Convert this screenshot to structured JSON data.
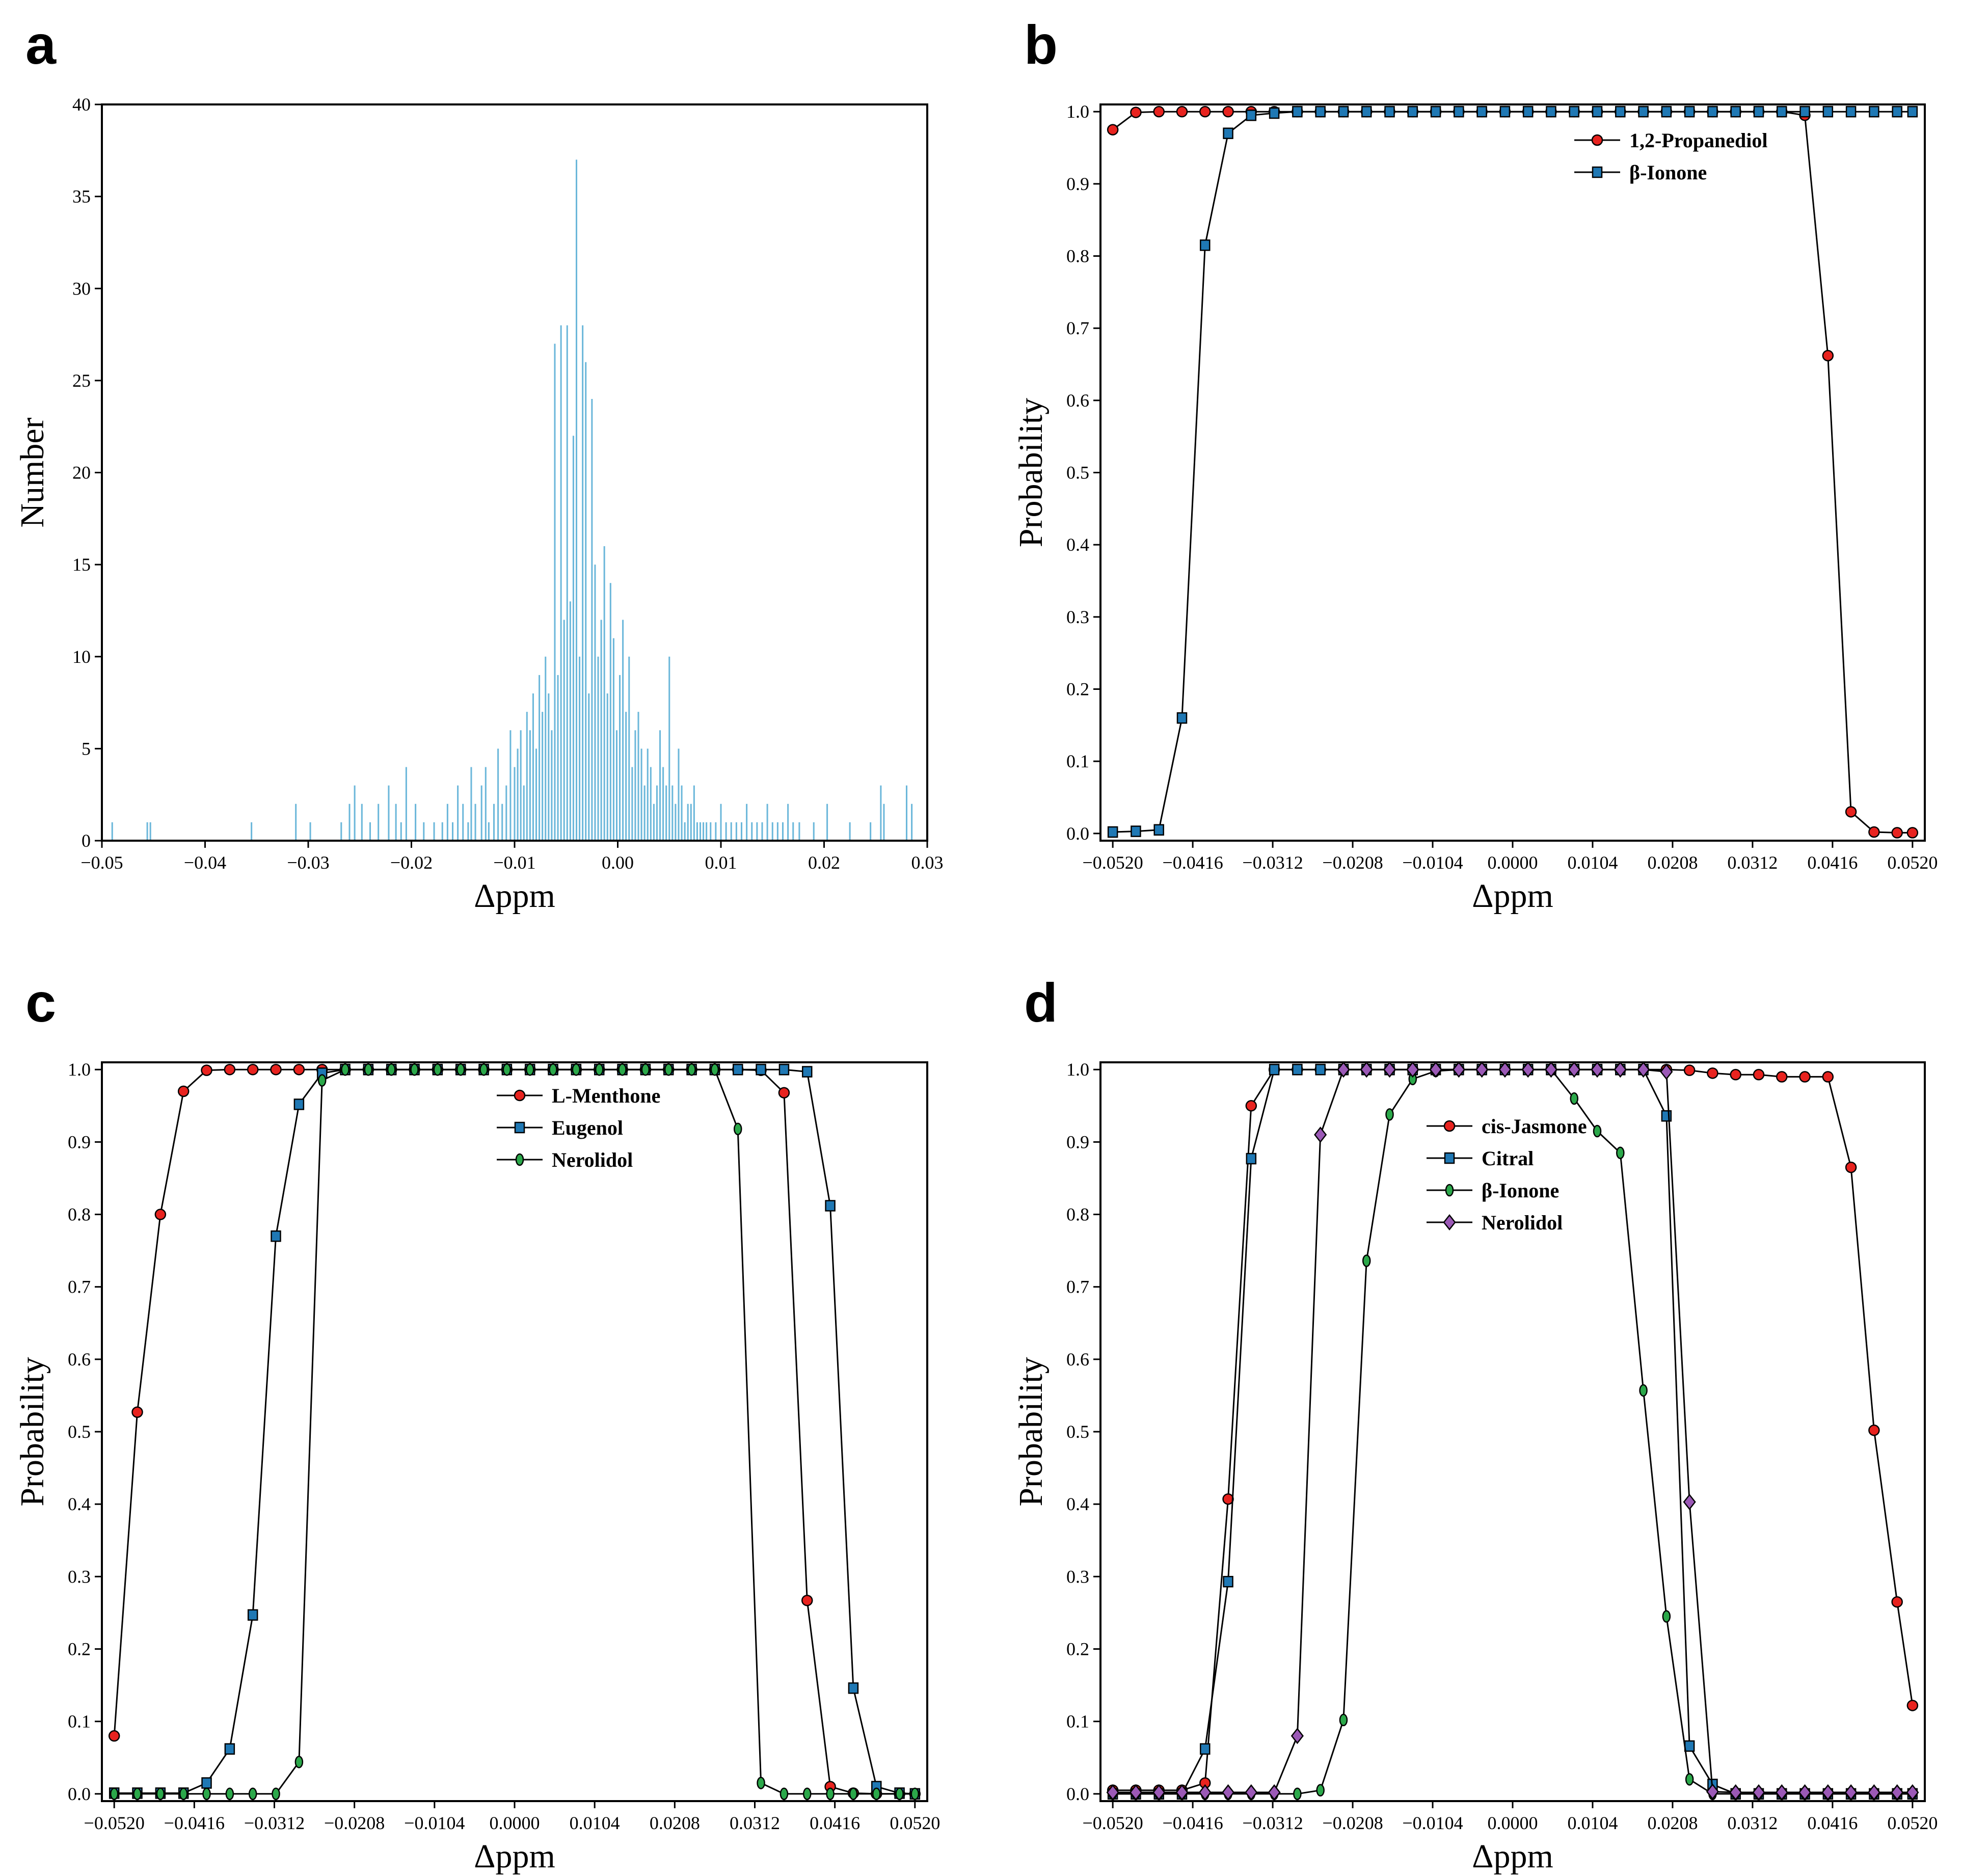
{
  "chart_data": [
    {
      "id": "a",
      "panel_label": "a",
      "type": "bar",
      "subtype": "histogram",
      "xlabel": "Δppm",
      "ylabel": "Number",
      "xlim": [
        -0.05,
        0.03
      ],
      "ylim": [
        0,
        40
      ],
      "xticks": [
        -0.05,
        -0.04,
        -0.03,
        -0.02,
        -0.01,
        0.0,
        0.01,
        0.02,
        0.03
      ],
      "xtick_labels": [
        "−0.05",
        "−0.04",
        "−0.03",
        "−0.02",
        "−0.01",
        "0.00",
        "0.01",
        "0.02",
        "0.03"
      ],
      "yticks": [
        0,
        5,
        10,
        15,
        20,
        25,
        30,
        35,
        40
      ],
      "ytick_labels": [
        "0",
        "5",
        "10",
        "15",
        "20",
        "25",
        "30",
        "35",
        "40"
      ],
      "color": "#6BB7DA",
      "bar_width": 0.00015,
      "x": [
        -0.049,
        -0.0456,
        -0.0453,
        -0.0355,
        -0.0312,
        -0.0298,
        -0.0268,
        -0.026,
        -0.0255,
        -0.0248,
        -0.024,
        -0.0232,
        -0.0222,
        -0.0215,
        -0.021,
        -0.0205,
        -0.0196,
        -0.0188,
        -0.0178,
        -0.017,
        -0.0165,
        -0.016,
        -0.0155,
        -0.015,
        -0.0145,
        -0.0142,
        -0.0138,
        -0.0132,
        -0.0128,
        -0.0125,
        -0.012,
        -0.0116,
        -0.0112,
        -0.0108,
        -0.0104,
        -0.01,
        -0.0097,
        -0.0094,
        -0.0091,
        -0.0088,
        -0.0085,
        -0.0082,
        -0.0079,
        -0.0076,
        -0.0073,
        -0.007,
        -0.0067,
        -0.0064,
        -0.0061,
        -0.0058,
        -0.0055,
        -0.0052,
        -0.0049,
        -0.0046,
        -0.0043,
        -0.004,
        -0.0037,
        -0.0034,
        -0.0031,
        -0.0028,
        -0.0025,
        -0.0022,
        -0.0019,
        -0.0016,
        -0.0013,
        -0.001,
        -0.0007,
        -0.0004,
        -0.0001,
        0.0002,
        0.0005,
        0.0008,
        0.0011,
        0.0014,
        0.0017,
        0.002,
        0.0023,
        0.0026,
        0.0029,
        0.0032,
        0.0035,
        0.0038,
        0.0041,
        0.0044,
        0.0047,
        0.005,
        0.0053,
        0.0056,
        0.0059,
        0.0062,
        0.0065,
        0.0068,
        0.0071,
        0.0074,
        0.0077,
        0.008,
        0.0083,
        0.0086,
        0.009,
        0.0095,
        0.01,
        0.0105,
        0.011,
        0.0115,
        0.012,
        0.0125,
        0.013,
        0.0135,
        0.014,
        0.0145,
        0.015,
        0.0155,
        0.016,
        0.0165,
        0.017,
        0.0176,
        0.019,
        0.0203,
        0.0225,
        0.0245,
        0.0255,
        0.0258,
        0.028,
        0.0285
      ],
      "values": [
        1,
        1,
        1,
        1,
        2,
        1,
        1,
        2,
        3,
        2,
        1,
        2,
        3,
        2,
        1,
        4,
        2,
        1,
        1,
        1,
        2,
        1,
        3,
        2,
        1,
        4,
        2,
        3,
        4,
        1,
        2,
        5,
        2,
        3,
        6,
        4,
        5,
        6,
        3,
        7,
        6,
        8,
        5,
        9,
        7,
        10,
        8,
        6,
        27,
        9,
        28,
        12,
        28,
        13,
        22,
        37,
        10,
        28,
        26,
        8,
        24,
        15,
        10,
        12,
        16,
        8,
        14,
        11,
        6,
        9,
        12,
        7,
        10,
        4,
        6,
        7,
        5,
        3,
        5,
        4,
        2,
        3,
        6,
        4,
        3,
        10,
        3,
        2,
        5,
        3,
        1,
        2,
        2,
        3,
        1,
        1,
        1,
        1,
        1,
        1,
        2,
        1,
        1,
        1,
        1,
        2,
        1,
        1,
        1,
        2,
        1,
        1,
        1,
        2,
        1,
        1,
        1,
        2,
        1,
        1,
        3,
        2,
        3,
        2
      ]
    },
    {
      "id": "b",
      "panel_label": "b",
      "type": "line",
      "xlabel": "Δppm",
      "ylabel": "Probability",
      "xlim": [
        -0.0536,
        0.0536
      ],
      "ylim": [
        -0.01,
        1.01
      ],
      "xticks": [
        -0.052,
        -0.0416,
        -0.0312,
        -0.0208,
        -0.0104,
        0.0,
        0.0104,
        0.0208,
        0.0312,
        0.0416,
        0.052
      ],
      "xtick_labels": [
        "−0.0520",
        "−0.0416",
        "−0.0312",
        "−0.0208",
        "−0.0104",
        "0.0000",
        "0.0104",
        "0.0208",
        "0.0312",
        "0.0416",
        "0.0520"
      ],
      "yticks": [
        0.0,
        0.1,
        0.2,
        0.3,
        0.4,
        0.5,
        0.6,
        0.7,
        0.8,
        0.9,
        1.0
      ],
      "ytick_labels": [
        "0.0",
        "0.1",
        "0.2",
        "0.3",
        "0.4",
        "0.5",
        "0.6",
        "0.7",
        "0.8",
        "0.9",
        "1.0"
      ],
      "legend_position": "top-right",
      "x": [
        -0.052,
        -0.049,
        -0.046,
        -0.043,
        -0.04,
        -0.037,
        -0.034,
        -0.031,
        -0.028,
        -0.025,
        -0.022,
        -0.019,
        -0.016,
        -0.013,
        -0.01,
        -0.007,
        -0.004,
        -0.001,
        0.002,
        0.005,
        0.008,
        0.011,
        0.014,
        0.017,
        0.02,
        0.023,
        0.026,
        0.029,
        0.032,
        0.035,
        0.038,
        0.041,
        0.044,
        0.047,
        0.05,
        0.052
      ],
      "series": [
        {
          "name": "1,2-Propanediol",
          "color": "#E8231F",
          "marker": "circle",
          "values": [
            0.975,
            0.999,
            1,
            1,
            1,
            1,
            1,
            1,
            1,
            1,
            1,
            1,
            1,
            1,
            1,
            1,
            1,
            1,
            1,
            1,
            1,
            1,
            1,
            1,
            1,
            1,
            1,
            1,
            1,
            1,
            0.995,
            0.662,
            0.03,
            0.002,
            0.001,
            0.001
          ]
        },
        {
          "name": "β-Ionone",
          "color": "#1F78B4",
          "marker": "square",
          "values": [
            0.002,
            0.003,
            0.005,
            0.16,
            0.815,
            0.97,
            0.995,
            0.998,
            1,
            1,
            1,
            1,
            1,
            1,
            1,
            1,
            1,
            1,
            1,
            1,
            1,
            1,
            1,
            1,
            1,
            1,
            1,
            1,
            1,
            1,
            1,
            1,
            1,
            1,
            1,
            1
          ]
        }
      ]
    },
    {
      "id": "c",
      "panel_label": "c",
      "type": "line",
      "xlabel": "Δppm",
      "ylabel": "Probability",
      "xlim": [
        -0.0536,
        0.0536
      ],
      "ylim": [
        -0.01,
        1.01
      ],
      "xticks": [
        -0.052,
        -0.0416,
        -0.0312,
        -0.0208,
        -0.0104,
        0.0,
        0.0104,
        0.0208,
        0.0312,
        0.0416,
        0.052
      ],
      "xtick_labels": [
        "−0.0520",
        "−0.0416",
        "−0.0312",
        "−0.0208",
        "−0.0104",
        "0.0000",
        "0.0104",
        "0.0208",
        "0.0312",
        "0.0416",
        "0.0520"
      ],
      "yticks": [
        0.0,
        0.1,
        0.2,
        0.3,
        0.4,
        0.5,
        0.6,
        0.7,
        0.8,
        0.9,
        1.0
      ],
      "ytick_labels": [
        "0.0",
        "0.1",
        "0.2",
        "0.3",
        "0.4",
        "0.5",
        "0.6",
        "0.7",
        "0.8",
        "0.9",
        "1.0"
      ],
      "legend_position": "top-center",
      "x": [
        -0.052,
        -0.049,
        -0.046,
        -0.043,
        -0.04,
        -0.037,
        -0.034,
        -0.031,
        -0.028,
        -0.025,
        -0.022,
        -0.019,
        -0.016,
        -0.013,
        -0.01,
        -0.007,
        -0.004,
        -0.001,
        0.002,
        0.005,
        0.008,
        0.011,
        0.014,
        0.017,
        0.02,
        0.023,
        0.026,
        0.029,
        0.032,
        0.035,
        0.038,
        0.041,
        0.044,
        0.047,
        0.05,
        0.052
      ],
      "series": [
        {
          "name": "L-Menthone",
          "color": "#E8231F",
          "marker": "circle",
          "values": [
            0.08,
            0.527,
            0.8,
            0.97,
            0.999,
            1,
            1,
            1,
            1,
            1,
            1,
            1,
            1,
            1,
            1,
            1,
            1,
            1,
            1,
            1,
            1,
            1,
            1,
            1,
            1,
            1,
            1,
            1,
            0.999,
            0.968,
            0.267,
            0.01,
            0.001,
            0,
            0,
            0
          ]
        },
        {
          "name": "Eugenol",
          "color": "#1F78B4",
          "marker": "square",
          "values": [
            0.001,
            0.001,
            0.001,
            0.001,
            0.015,
            0.062,
            0.247,
            0.77,
            0.952,
            0.995,
            1,
            1,
            1,
            1,
            1,
            1,
            1,
            1,
            1,
            1,
            1,
            1,
            1,
            1,
            1,
            1,
            1,
            1,
            1,
            1,
            0.997,
            0.812,
            0.146,
            0.01,
            0.001,
            0
          ]
        },
        {
          "name": "Nerolidol",
          "color": "#2BA84A",
          "marker": "ellipse",
          "values": [
            0,
            0,
            0,
            0,
            0,
            0,
            0,
            0,
            0.044,
            0.985,
            1,
            1,
            1,
            1,
            1,
            1,
            1,
            1,
            1,
            1,
            1,
            1,
            1,
            1,
            1,
            1,
            1,
            0.918,
            0.015,
            0,
            0,
            0,
            0,
            0,
            0,
            0
          ]
        }
      ]
    },
    {
      "id": "d",
      "panel_label": "d",
      "type": "line",
      "xlabel": "Δppm",
      "ylabel": "Probability",
      "xlim": [
        -0.0536,
        0.0536
      ],
      "ylim": [
        -0.01,
        1.01
      ],
      "xticks": [
        -0.052,
        -0.0416,
        -0.0312,
        -0.0208,
        -0.0104,
        0.0,
        0.0104,
        0.0208,
        0.0312,
        0.0416,
        0.052
      ],
      "xtick_labels": [
        "−0.0520",
        "−0.0416",
        "−0.0312",
        "−0.0208",
        "−0.0104",
        "0.0000",
        "0.0104",
        "0.0208",
        "0.0312",
        "0.0416",
        "0.0520"
      ],
      "yticks": [
        0.0,
        0.1,
        0.2,
        0.3,
        0.4,
        0.5,
        0.6,
        0.7,
        0.8,
        0.9,
        1.0
      ],
      "ytick_labels": [
        "0.0",
        "0.1",
        "0.2",
        "0.3",
        "0.4",
        "0.5",
        "0.6",
        "0.7",
        "0.8",
        "0.9",
        "1.0"
      ],
      "legend_position": "upper-left",
      "x": [
        -0.052,
        -0.049,
        -0.046,
        -0.043,
        -0.04,
        -0.037,
        -0.034,
        -0.031,
        -0.028,
        -0.025,
        -0.022,
        -0.019,
        -0.016,
        -0.013,
        -0.01,
        -0.007,
        -0.004,
        -0.001,
        0.002,
        0.005,
        0.008,
        0.011,
        0.014,
        0.017,
        0.02,
        0.023,
        0.026,
        0.029,
        0.032,
        0.035,
        0.038,
        0.041,
        0.044,
        0.047,
        0.05,
        0.052
      ],
      "series": [
        {
          "name": "cis-Jasmone",
          "color": "#E8231F",
          "marker": "circle",
          "values": [
            0.005,
            0.005,
            0.005,
            0.005,
            0.015,
            0.407,
            0.95,
            1,
            1,
            1,
            1,
            1,
            1,
            1,
            1,
            1,
            1,
            1,
            1,
            1,
            1,
            1,
            1,
            1,
            1,
            0.999,
            0.995,
            0.993,
            0.993,
            0.99,
            0.99,
            0.99,
            0.865,
            0.502,
            0.265,
            0.122
          ]
        },
        {
          "name": "Citral",
          "color": "#1F78B4",
          "marker": "square",
          "values": [
            0,
            0,
            0,
            0,
            0.062,
            0.293,
            0.877,
            1,
            1,
            1,
            1,
            1,
            1,
            1,
            1,
            1,
            1,
            1,
            1,
            1,
            1,
            1,
            1,
            1,
            0.936,
            0.066,
            0.013,
            0,
            0,
            0,
            0,
            0,
            0,
            0,
            0,
            0
          ]
        },
        {
          "name": "β-Ionone",
          "color": "#2BA84A",
          "marker": "ellipse",
          "values": [
            0,
            0,
            0,
            0,
            0,
            0,
            0,
            0,
            0,
            0.005,
            0.102,
            0.736,
            0.938,
            0.987,
            0.998,
            1,
            1,
            1,
            1,
            1,
            0.96,
            0.915,
            0.885,
            0.557,
            0.245,
            0.02,
            0,
            0,
            0,
            0,
            0,
            0,
            0,
            0,
            0,
            0
          ]
        },
        {
          "name": "Nerolidol",
          "color": "#9B59B6",
          "marker": "diamond",
          "values": [
            0.002,
            0.002,
            0.002,
            0.002,
            0.002,
            0.002,
            0.002,
            0.002,
            0.08,
            0.91,
            1,
            1,
            1,
            1,
            1,
            1,
            1,
            1,
            1,
            1,
            1,
            1,
            1,
            1,
            0.997,
            0.403,
            0.003,
            0.002,
            0.002,
            0.002,
            0.002,
            0.002,
            0.002,
            0.002,
            0.002,
            0.002
          ]
        }
      ]
    }
  ]
}
